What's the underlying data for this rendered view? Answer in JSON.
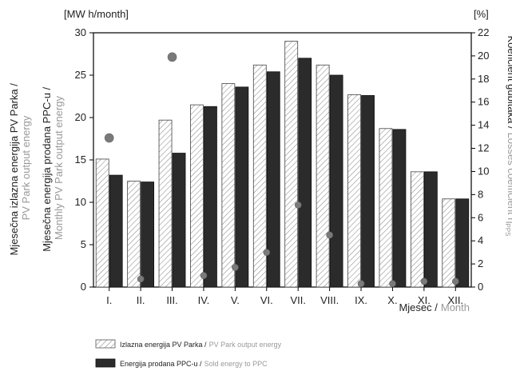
{
  "chart_data": {
    "type": "bar",
    "categories": [
      "I.",
      "II.",
      "III.",
      "IV.",
      "V.",
      "VI.",
      "VII.",
      "VIII.",
      "IX.",
      "X.",
      "XI.",
      "XII."
    ],
    "series": [
      {
        "name": "Izlazna energija PV Parka / PV Park output energy",
        "name_local": "Izlazna energija PV Parka /",
        "name_en": "PV Park output energy",
        "axis": "left",
        "pattern": "hatched",
        "values": [
          15.1,
          12.5,
          19.7,
          21.5,
          24.0,
          26.2,
          29.0,
          26.2,
          22.7,
          18.7,
          13.6,
          10.4
        ]
      },
      {
        "name": "Energija prodana PPC-u / Sold energy to PPC",
        "name_local": "Energija prodana PPC-u /",
        "name_en": "Sold energy to PPC",
        "axis": "left",
        "pattern": "solid-dark",
        "values": [
          13.2,
          12.4,
          15.8,
          21.3,
          23.6,
          25.4,
          27.0,
          25.0,
          22.6,
          18.6,
          13.6,
          10.4
        ]
      },
      {
        "axis": "right",
        "type": "scatter",
        "values": [
          12.9,
          0.7,
          19.9,
          1.0,
          1.7,
          3.0,
          7.1,
          4.5,
          0.3,
          0.3,
          0.5,
          0.5
        ]
      }
    ],
    "y_left": {
      "unit": "[MW h/month]",
      "ylim": [
        0,
        30
      ],
      "ticks": [
        0,
        5,
        10,
        15,
        20,
        25,
        30
      ]
    },
    "y_right": {
      "unit": "[%]",
      "ylim": [
        0,
        22
      ],
      "ticks": [
        0,
        2,
        4,
        6,
        8,
        10,
        12,
        14,
        16,
        18,
        20,
        22
      ]
    },
    "left_title_1_local": "Mjesečna izlazna energija PV Parka /",
    "left_title_1_en": "PV Park output energy",
    "left_title_2_local": "Mjesečna energija prodana PPC-u /",
    "left_title_2_en": "Monthly PV Park output energy",
    "right_title_local": "Koeficient gubitaka /",
    "right_title_en": "Losses coefficient η",
    "right_title_sub": "PPS",
    "xlabel_local": "Mjesec /",
    "xlabel_en": "Month",
    "grid": false,
    "legend_position": "bottom-left",
    "colors": {
      "hatched_bar": "#ffffff",
      "hatch_line": "#888888",
      "solid_bar": "#2b2b2b",
      "marker": "#7a7a7a",
      "axis": "#000000"
    }
  }
}
